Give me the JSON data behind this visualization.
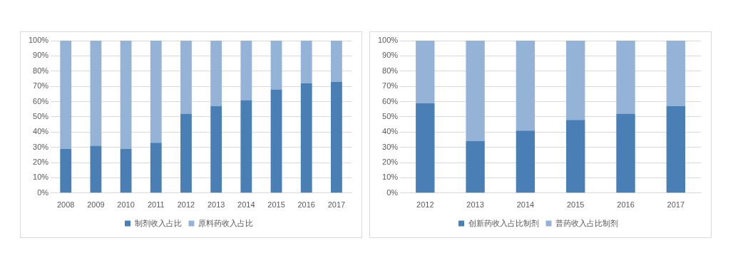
{
  "chart_data": [
    {
      "type": "bar",
      "stacked": true,
      "categories": [
        "2008",
        "2009",
        "2010",
        "2011",
        "2012",
        "2013",
        "2014",
        "2015",
        "2016",
        "2017"
      ],
      "series": [
        {
          "name": "制剂收入占比",
          "color": "#4a7fb5",
          "values": [
            29,
            31,
            29,
            33,
            52,
            57,
            61,
            68,
            72,
            73
          ]
        },
        {
          "name": "原料药收入占比",
          "color": "#95b3d7",
          "values": [
            71,
            69,
            71,
            67,
            48,
            43,
            39,
            32,
            28,
            27
          ]
        }
      ],
      "ylim": [
        0,
        100
      ],
      "yticks": [
        {
          "value": 0,
          "label": "0%"
        },
        {
          "value": 10,
          "label": "10%"
        },
        {
          "value": 20,
          "label": "20%"
        },
        {
          "value": 30,
          "label": "30%"
        },
        {
          "value": 40,
          "label": "40%"
        },
        {
          "value": 50,
          "label": "50%"
        },
        {
          "value": 60,
          "label": "60%"
        },
        {
          "value": 70,
          "label": "70%"
        },
        {
          "value": 80,
          "label": "80%"
        },
        {
          "value": 90,
          "label": "90%"
        },
        {
          "value": 100,
          "label": "100%"
        }
      ],
      "grid": "y",
      "legend": "bottom"
    },
    {
      "type": "bar",
      "stacked": true,
      "categories": [
        "2012",
        "2013",
        "2014",
        "2015",
        "2016",
        "2017"
      ],
      "series": [
        {
          "name": "创新药收入占比制剂",
          "color": "#4a7fb5",
          "values": [
            59,
            34,
            41,
            48,
            52,
            57
          ]
        },
        {
          "name": "普药收入占比制剂",
          "color": "#95b3d7",
          "values": [
            41,
            66,
            59,
            52,
            48,
            43
          ]
        }
      ],
      "ylim": [
        0,
        100
      ],
      "yticks": [
        {
          "value": 0,
          "label": "0%"
        },
        {
          "value": 10,
          "label": "10%"
        },
        {
          "value": 20,
          "label": "20%"
        },
        {
          "value": 30,
          "label": "30%"
        },
        {
          "value": 40,
          "label": "40%"
        },
        {
          "value": 50,
          "label": "50%"
        },
        {
          "value": 60,
          "label": "60%"
        },
        {
          "value": 70,
          "label": "70%"
        },
        {
          "value": 80,
          "label": "80%"
        },
        {
          "value": 90,
          "label": "90%"
        },
        {
          "value": 100,
          "label": "100%"
        }
      ],
      "grid": "y",
      "legend": "bottom"
    }
  ]
}
